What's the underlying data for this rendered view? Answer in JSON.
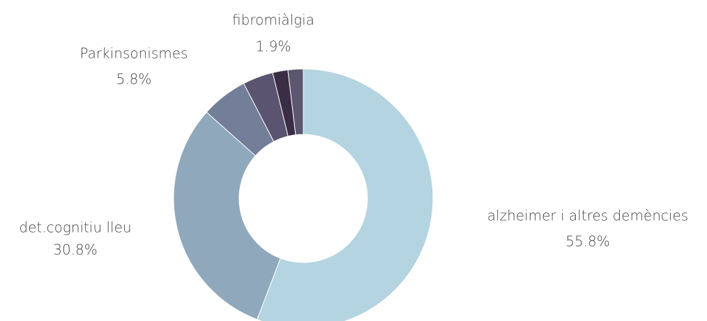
{
  "chart_data": {
    "type": "donut",
    "categories": [
      "alzheimer i altres demències",
      "det.cognitiu lleu",
      "Parkinsonismes",
      null,
      null,
      "fibromiàlgia"
    ],
    "values": [
      55.8,
      30.8,
      5.8,
      3.8,
      1.9,
      1.9
    ],
    "value_labels": [
      "55.8%",
      "30.8%",
      "5.8%",
      null,
      null,
      "1.9%"
    ],
    "colors": [
      "#b3d4e0",
      "#8fa8bc",
      "#737f98",
      "#5a5470",
      "#3a2d45",
      "#5c5670"
    ]
  }
}
